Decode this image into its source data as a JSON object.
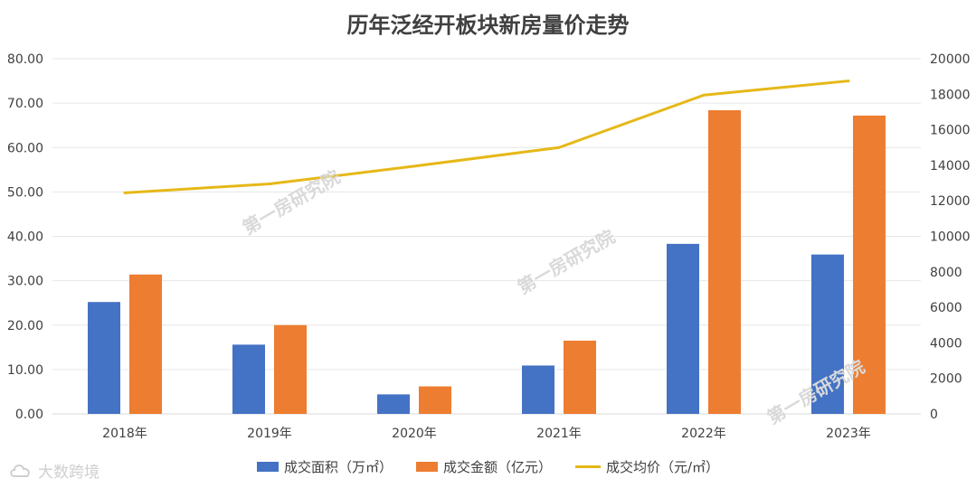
{
  "chart_data": {
    "type": "bar",
    "title": "历年泛经开板块新房量价走势",
    "categories": [
      "2018年",
      "2019年",
      "2020年",
      "2021年",
      "2022年",
      "2023年"
    ],
    "y_left_ticks": [
      "0.00",
      "10.00",
      "20.00",
      "30.00",
      "40.00",
      "50.00",
      "60.00",
      "70.00",
      "80.00"
    ],
    "y_right_ticks": [
      "0",
      "2000",
      "4000",
      "6000",
      "8000",
      "10000",
      "12000",
      "14000",
      "16000",
      "18000",
      "20000"
    ],
    "ylim_left": [
      0,
      80
    ],
    "ylim_right": [
      0,
      20000
    ],
    "grid": true,
    "legend_position": "bottom",
    "series": [
      {
        "name": "成交面积（万㎡）",
        "type": "bar",
        "axis": "left",
        "color": "#4472c4",
        "values": [
          25.2,
          15.6,
          4.4,
          10.9,
          38.3,
          35.9
        ]
      },
      {
        "name": "成交金额（亿元）",
        "type": "bar",
        "axis": "left",
        "color": "#ed7d31",
        "values": [
          31.4,
          20.0,
          6.2,
          16.5,
          68.4,
          67.2
        ]
      },
      {
        "name": "成交均价（元/㎡）",
        "type": "line",
        "axis": "right",
        "color": "#e6b818",
        "values": [
          12450,
          12950,
          13950,
          15000,
          17950,
          18750
        ]
      }
    ]
  },
  "watermarks": [
    "第一房研究院",
    "第一房研究院",
    "第一房研究院"
  ],
  "brand": {
    "icon": "cloud-logo-icon",
    "text": "大数跨境"
  }
}
